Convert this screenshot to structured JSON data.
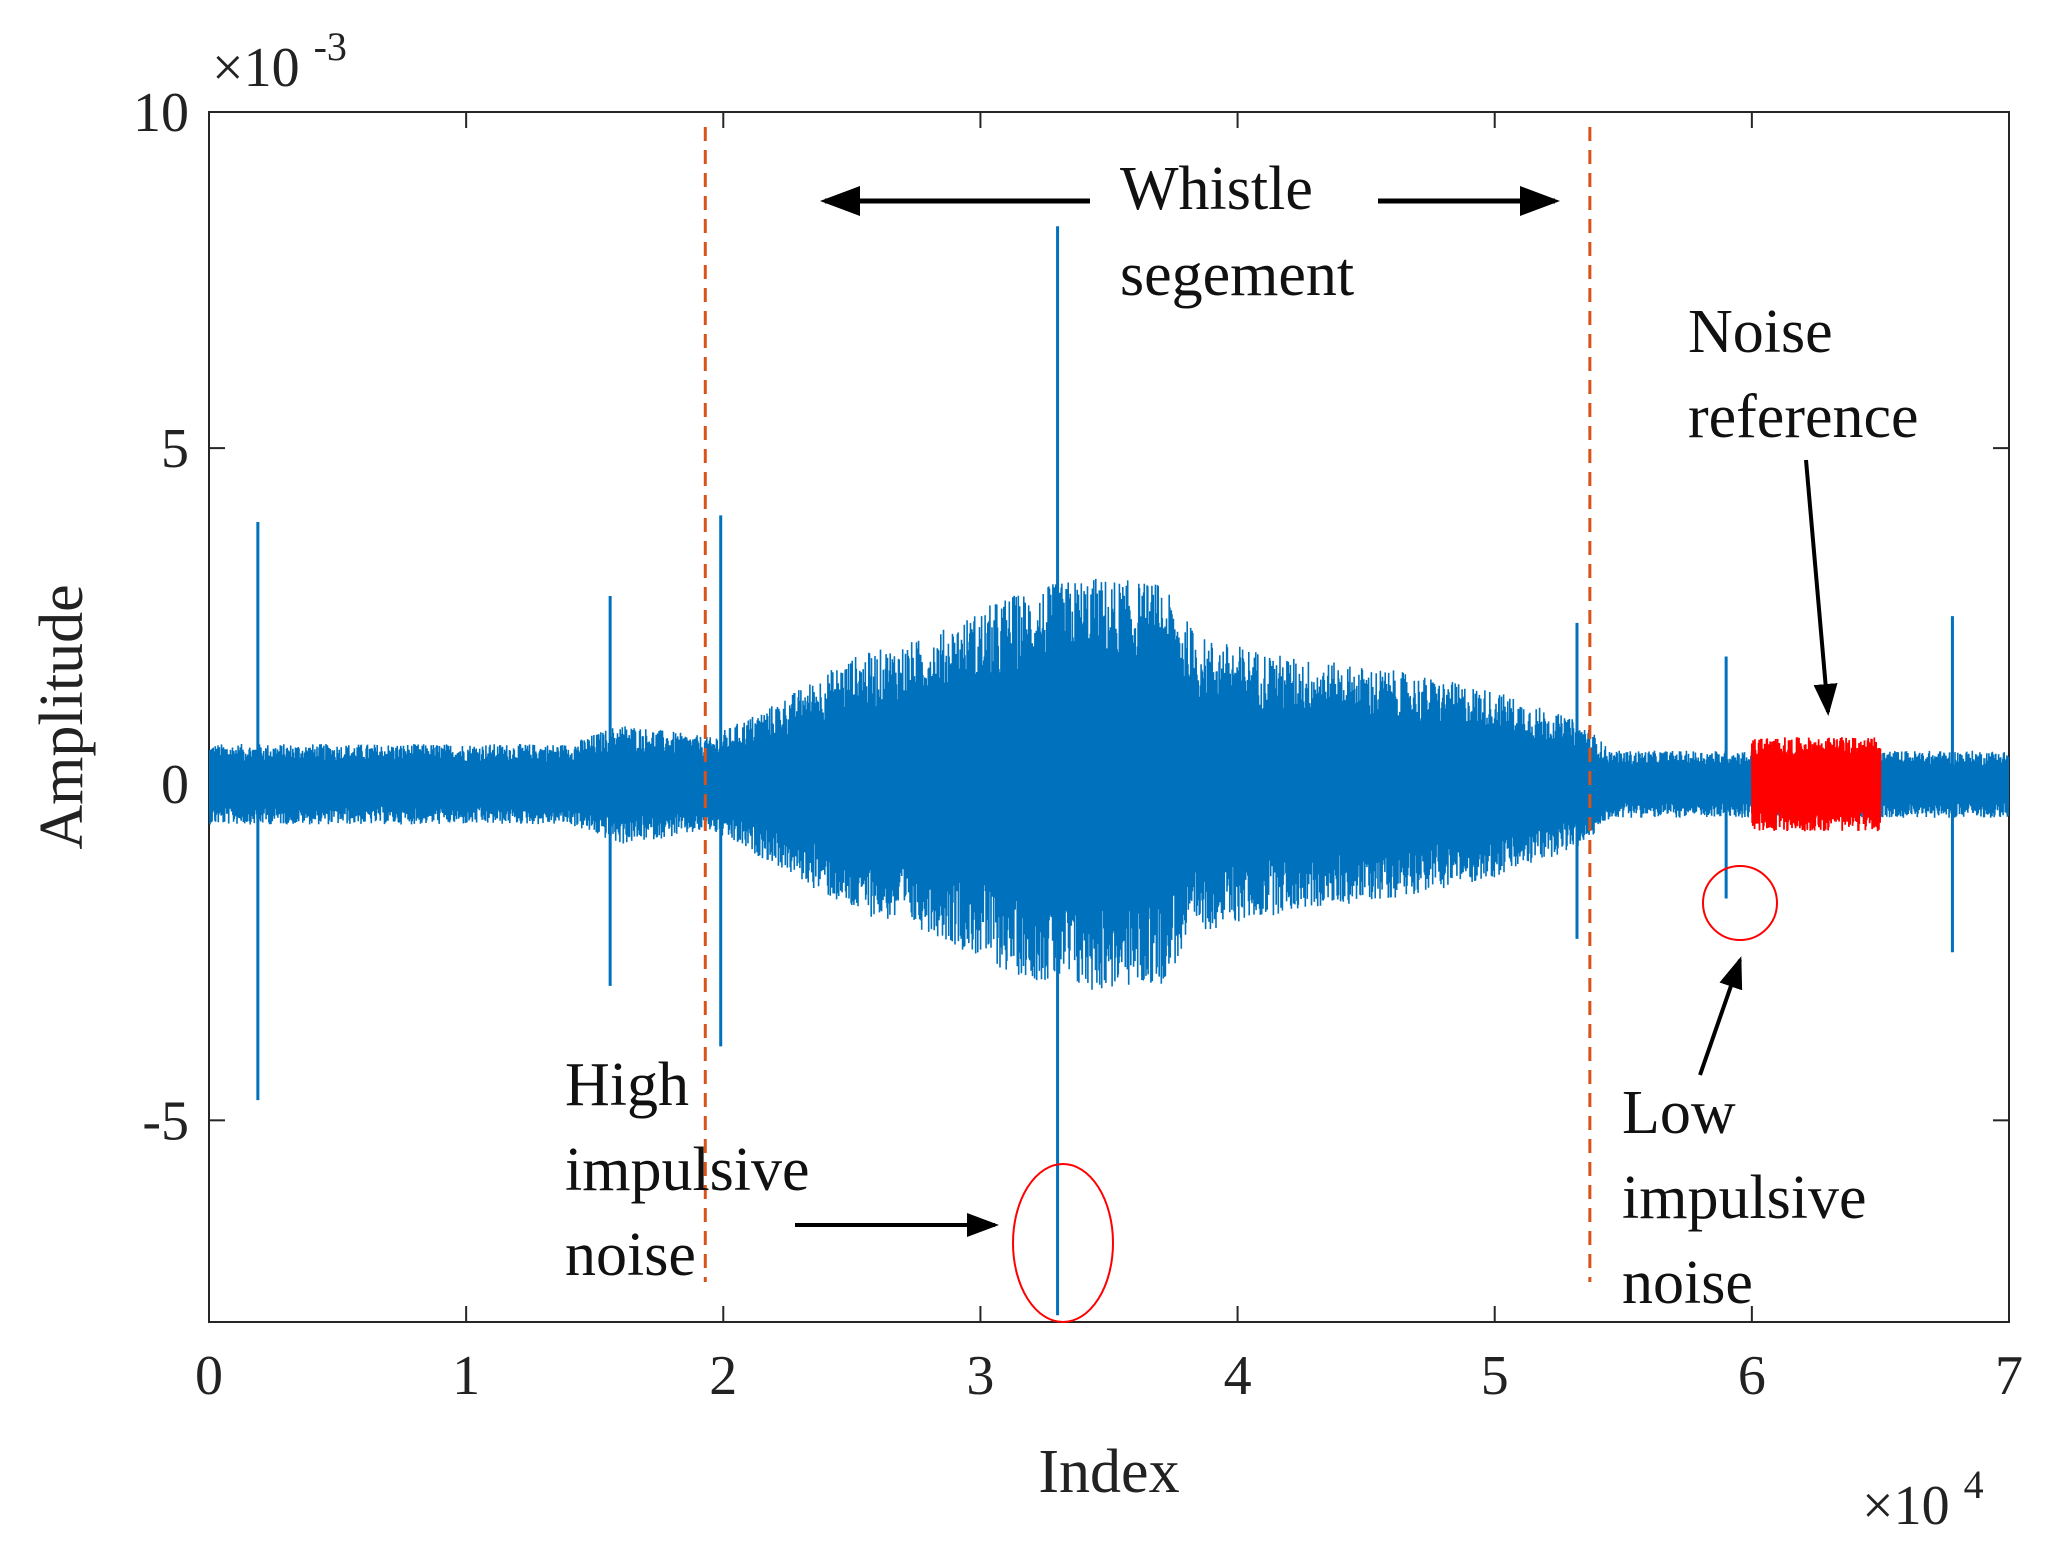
{
  "chart_data": {
    "type": "line",
    "title": "",
    "xlabel": "Index",
    "ylabel": "Amplitude",
    "x_multiplier_label": "×10",
    "x_multiplier_exp": "4",
    "y_multiplier_label": "×10",
    "y_multiplier_exp": "-3",
    "xlim": [
      0,
      70000
    ],
    "ylim": [
      -0.008,
      0.01
    ],
    "x_ticks": [
      0,
      10000,
      20000,
      30000,
      40000,
      50000,
      60000,
      70000
    ],
    "x_tick_labels": [
      "0",
      "1",
      "2",
      "3",
      "4",
      "5",
      "6",
      "7"
    ],
    "y_ticks": [
      -0.005,
      0,
      0.005,
      0.01
    ],
    "y_tick_labels": [
      "-5",
      "0",
      "5",
      "10"
    ],
    "grid": false,
    "series": [
      {
        "name": "Signal",
        "color": "#0072BD",
        "envelope": [
          {
            "x": 0,
            "amp": 0.0006
          },
          {
            "x": 14000,
            "amp": 0.0006
          },
          {
            "x": 16000,
            "amp": 0.0009
          },
          {
            "x": 19500,
            "amp": 0.0007
          },
          {
            "x": 22000,
            "amp": 0.0012
          },
          {
            "x": 25000,
            "amp": 0.0019
          },
          {
            "x": 28000,
            "amp": 0.0022
          },
          {
            "x": 31000,
            "amp": 0.0028
          },
          {
            "x": 34000,
            "amp": 0.0031
          },
          {
            "x": 37000,
            "amp": 0.003
          },
          {
            "x": 38500,
            "amp": 0.0022
          },
          {
            "x": 42000,
            "amp": 0.0019
          },
          {
            "x": 46000,
            "amp": 0.0017
          },
          {
            "x": 50000,
            "amp": 0.0014
          },
          {
            "x": 53500,
            "amp": 0.0009
          },
          {
            "x": 54500,
            "amp": 0.0005
          },
          {
            "x": 70000,
            "amp": 0.0005
          }
        ],
        "impulses": [
          {
            "x": 1900,
            "high": 0.0039,
            "low": -0.0047
          },
          {
            "x": 15600,
            "high": 0.0028,
            "low": -0.003
          },
          {
            "x": 19900,
            "high": 0.004,
            "low": -0.0039
          },
          {
            "x": 33000,
            "high": 0.0083,
            "low": -0.0079
          },
          {
            "x": 53200,
            "high": 0.0024,
            "low": -0.0023
          },
          {
            "x": 59000,
            "high": 0.0019,
            "low": -0.0017
          },
          {
            "x": 67800,
            "high": 0.0025,
            "low": -0.0025
          }
        ]
      },
      {
        "name": "Noise reference",
        "color": "#FF0000",
        "x_range": [
          60000,
          65000
        ],
        "amp": 0.0007
      }
    ],
    "boundaries": [
      {
        "name": "whistle-start",
        "x": 19300,
        "color": "#D95319",
        "style": "dashed"
      },
      {
        "name": "whistle-end",
        "x": 53700,
        "color": "#D95319",
        "style": "dashed"
      }
    ],
    "annotations": {
      "whistle": [
        "Whistle",
        "segement"
      ],
      "noise_reference": [
        "Noise",
        "reference"
      ],
      "high_impulsive": [
        "High",
        "impulsive",
        "noise"
      ],
      "low_impulsive": [
        "Low",
        "impulsive",
        "noise"
      ]
    },
    "marker_color": "#FF0000"
  }
}
